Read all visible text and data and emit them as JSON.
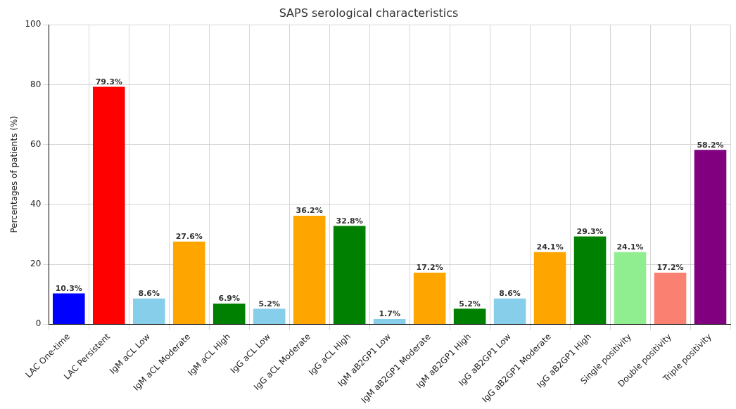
{
  "chart_data": {
    "type": "bar",
    "title": "SAPS serological characteristics",
    "ylabel": "Percentages of patients (%)",
    "categories": [
      "LAC One-time",
      "LAC Persistent",
      "IgM aCL Low",
      "IgM aCL Moderate",
      "IgM aCL High",
      "IgG aCL Low",
      "IgG aCL Moderate",
      "IgG aCL High",
      "IgM aB2GP1 Low",
      "IgM aB2GP1 Moderate",
      "IgM aB2GP1 High",
      "IgG aB2GP1 Low",
      "IgG aB2GP1 Moderate",
      "IgG aB2GP1 High",
      "Single positivity",
      "Double positivity",
      "Triple positivity"
    ],
    "values": [
      10.3,
      79.3,
      8.6,
      27.6,
      6.9,
      5.2,
      36.2,
      32.8,
      1.7,
      17.2,
      5.2,
      8.6,
      24.1,
      29.3,
      24.1,
      17.2,
      58.2
    ],
    "colors": [
      "#0000ff",
      "#ff0000",
      "#87ceeb",
      "#ffa500",
      "#008000",
      "#87ceeb",
      "#ffa500",
      "#008000",
      "#87ceeb",
      "#ffa500",
      "#008000",
      "#87ceeb",
      "#ffa500",
      "#008000",
      "#90ee90",
      "#fa8072",
      "#800080"
    ],
    "value_labels": [
      "10.3%",
      "79.3%",
      "8.6%",
      "27.6%",
      "6.9%",
      "5.2%",
      "36.2%",
      "32.8%",
      "1.7%",
      "17.2%",
      "5.2%",
      "8.6%",
      "24.1%",
      "29.3%",
      "24.1%",
      "17.2%",
      "58.2%"
    ],
    "ylim": [
      0,
      100
    ],
    "yticks": [
      0,
      20,
      40,
      60,
      80,
      100
    ],
    "grid": true,
    "legend": false
  }
}
